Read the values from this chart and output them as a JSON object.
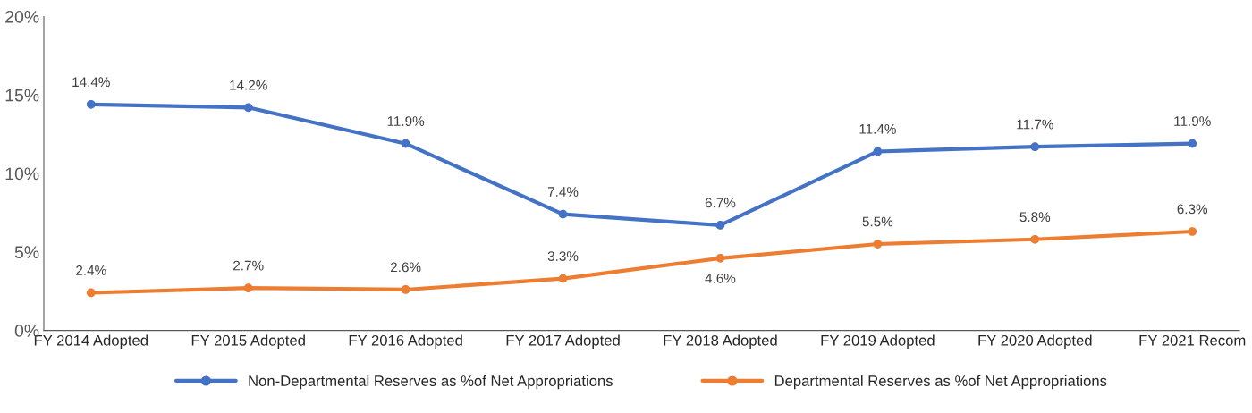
{
  "chart_data": {
    "type": "line",
    "categories": [
      "FY 2014 Adopted",
      "FY 2015 Adopted",
      "FY 2016 Adopted",
      "FY 2017 Adopted",
      "FY 2018 Adopted",
      "FY 2019 Adopted",
      "FY 2020 Adopted",
      "FY 2021 Recom"
    ],
    "series": [
      {
        "name": "Non-Departmental Reserves as %of Net Appropriations",
        "color": "#4472c4",
        "values": [
          14.4,
          14.2,
          11.9,
          7.4,
          6.7,
          11.4,
          11.7,
          11.9
        ],
        "value_labels": [
          "14.4%",
          "14.2%",
          "11.9%",
          "7.4%",
          "6.7%",
          "11.4%",
          "11.7%",
          "11.9%"
        ]
      },
      {
        "name": "Departmental Reserves as %of Net Appropriations",
        "color": "#ed7d31",
        "values": [
          2.4,
          2.7,
          2.6,
          3.3,
          4.6,
          5.5,
          5.8,
          6.3
        ],
        "value_labels": [
          "2.4%",
          "2.7%",
          "2.6%",
          "3.3%",
          "4.6%",
          "5.5%",
          "5.8%",
          "6.3%"
        ]
      }
    ],
    "ylim": [
      0,
      20
    ],
    "yticks": [
      {
        "value": 0,
        "label": "0%"
      },
      {
        "value": 5,
        "label": "5%"
      },
      {
        "value": 10,
        "label": "10%"
      },
      {
        "value": 15,
        "label": "15%"
      },
      {
        "value": 20,
        "label": "20%"
      }
    ],
    "grid": false,
    "legend": "bottom",
    "marker": "circle",
    "line_style": "solid"
  }
}
